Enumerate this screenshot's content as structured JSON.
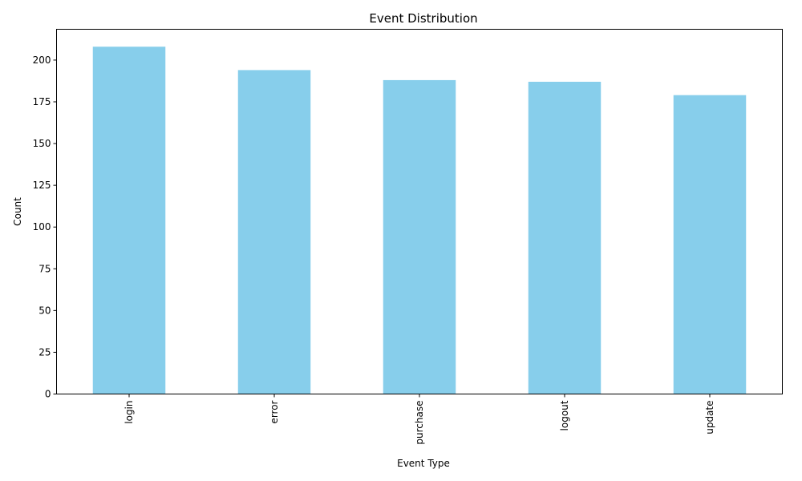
{
  "chart_data": {
    "type": "bar",
    "title": "Event Distribution",
    "xlabel": "Event Type",
    "ylabel": "Count",
    "categories": [
      "login",
      "error",
      "purchase",
      "logout",
      "update"
    ],
    "values": [
      208,
      194,
      188,
      187,
      179
    ],
    "ylim": [
      0,
      218.45
    ],
    "yticks": [
      0,
      25,
      50,
      75,
      100,
      125,
      150,
      175,
      200
    ],
    "bar_color": "#87ceeb",
    "grid": false,
    "x_tick_rotation": "vertical"
  }
}
